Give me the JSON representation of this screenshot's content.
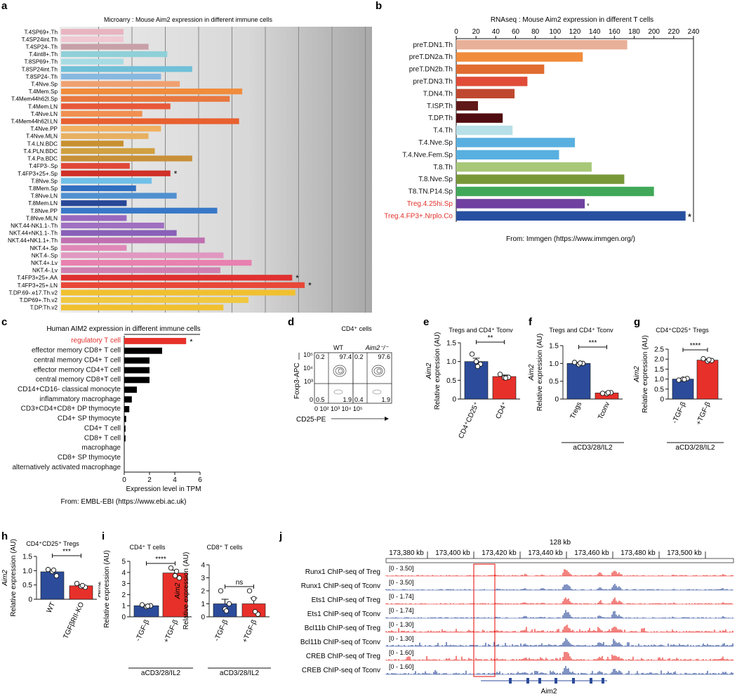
{
  "colors": {
    "red": "#e8302a",
    "blue": "#2c4b9a",
    "treg_red": "#e0302a",
    "grey_panel": "#d8d8d8"
  },
  "panels": {
    "a": {
      "letter": "a",
      "title": "Microarry : Mouse Aim2 expression in different immune cells"
    },
    "b": {
      "letter": "b",
      "title": "RNAseq : Mouse Aim2 expression in different T cells",
      "footer": "From: Immgen (https://www.immgen.org/)"
    },
    "c": {
      "letter": "c",
      "title": "Human AIM2 expression in different immune cells",
      "footer": "From: EMBL-EBI (https://www.ebi.ac.uk)"
    },
    "d": {
      "letter": "d",
      "title": "CD4⁺ cells",
      "wt": "WT",
      "ko": "Aim2⁻/⁻",
      "ylab": "Foxp3-APC",
      "xlab": "CD25-PE",
      "q_wt": [
        "0.2",
        "97.4",
        "0.5",
        "1.9"
      ],
      "q_ko": [
        "0.2",
        "97.6",
        "0.4",
        "1.9"
      ],
      "yticks": [
        "10⁵",
        "10⁴",
        "10³",
        "0"
      ],
      "xticks": "0 10² 10³ 10⁴ 10⁵"
    },
    "e": {
      "letter": "e",
      "title": "Tregs and CD4⁺ Tconv",
      "sig": "**"
    },
    "f": {
      "letter": "f",
      "title": "Tregs and CD4⁺ Tconv",
      "sig": "***",
      "cond": "aCD3/28/IL2"
    },
    "g": {
      "letter": "g",
      "title": "CD4⁺CD25⁺ Tregs",
      "sig": "****",
      "cond": "aCD3/28/IL2"
    },
    "h": {
      "letter": "h",
      "title": "CD4⁺CD25⁺ Tregs",
      "sig": "***"
    },
    "i": {
      "letter": "i",
      "title1": "CD4⁺ T cells",
      "title2": "CD8⁺ T cells",
      "sig1": "****",
      "sig2": "ns",
      "cond": "aCD3/28/IL2"
    },
    "j": {
      "letter": "j",
      "scale": "128 kb",
      "coords": [
        "173,380 kb",
        "173,400 kb",
        "173,420 kb",
        "173,440 kb",
        "173,460 kb",
        "173,480 kb",
        "173,500 kb"
      ],
      "gene": "Aim2",
      "tracks": [
        {
          "label": "Runx1 ChIP-seq of Treg",
          "range": "[0 - 3.50]",
          "cell": "treg"
        },
        {
          "label": "Runx1 ChIP-seq of Tconv",
          "range": "[0 - 3.50]",
          "cell": "tconv"
        },
        {
          "label": "Ets1 ChIP-seq of Treg",
          "range": "[0 - 1.74]",
          "cell": "treg"
        },
        {
          "label": "Ets1 ChIP-seq of Tconv",
          "range": "[0 - 1.74]",
          "cell": "tconv"
        },
        {
          "label": "Bcl11b ChIP-seq of Treg",
          "range": "[0 - 1.30]",
          "cell": "treg"
        },
        {
          "label": "Bcl11b ChIP-seq of Tconv",
          "range": "[0 - 1.30]",
          "cell": "tconv"
        },
        {
          "label": "CREB ChIP-seq of Treg",
          "range": "[0 - 1.60]",
          "cell": "treg"
        },
        {
          "label": "CREB ChIP-seq of Tconv",
          "range": "[0 - 1.60]",
          "cell": "tconv"
        }
      ]
    }
  },
  "chart_data": [
    {
      "id": "a",
      "type": "bar",
      "orientation": "horizontal",
      "title": "Microarry : Mouse Aim2 expression in different immune cells",
      "xlim": [
        0,
        100
      ],
      "categories": [
        "T.4SP69+.Th",
        "T.4SP24int.Th",
        "T.4SP24-.Th",
        "T.4int8+.Th",
        "T.8SP69+.Th",
        "T.8SP24int.Th",
        "T.8SP24-.Th",
        "T.4Nve.Sp",
        "T.4Mem.Sp",
        "T.4Mem44h62l.Sp",
        "T.4Mem.LN",
        "T.4Nve.LN",
        "T.4Mem44h62l.LN",
        "T.4Nve.PP",
        "T.4Nve.MLN",
        "T.4.LN.BDC",
        "T.4.PLN.BDC",
        "T.4.Pa.BDC",
        "T.4FP3-.Sp",
        "T.4FP3+25+.Sp",
        "T.8Nve.Sp",
        "T.8Mem.Sp",
        "T.8Nve.LN",
        "T.8Mem.LN",
        "T.8Nve.PP",
        "T.8Nve.MLN",
        "NKT.44-NK1.1-.Th",
        "NKT.44+NK1.1-.Th",
        "NKT.44+NK1.1+.Th",
        "NKT.4+.Sp",
        "NKT.4-.Sp",
        "NKT.4+.Lv",
        "NKT.4-.Lv",
        "T.4FP3+25+.AA",
        "T.4FP3+25+.LN",
        "T.DP.69-.e17.Th.v2",
        "T.DP69+.Th.v2",
        "T.DP.Th.v2"
      ],
      "values": [
        20,
        20,
        28,
        34,
        20,
        42,
        32,
        38,
        58,
        54,
        35,
        26,
        57,
        32,
        28,
        20,
        30,
        42,
        22,
        35,
        29,
        24,
        37,
        21,
        50,
        21,
        33,
        37,
        46,
        21,
        52,
        61,
        51,
        74,
        78,
        75,
        60,
        52
      ],
      "colors": [
        "#e8b4c0",
        "#f0c8d2",
        "#c8a0a8",
        "#8fd0d8",
        "#a8dce4",
        "#70c0d8",
        "#88b8e0",
        "#f0a070",
        "#f08c3c",
        "#e87840",
        "#e85838",
        "#f09050",
        "#e86030",
        "#f0b060",
        "#e8b060",
        "#c89030",
        "#d0a040",
        "#c89038",
        "#e04838",
        "#d03028",
        "#70c0e8",
        "#3070c0",
        "#5090d0",
        "#284898",
        "#3878c8",
        "#9868c0",
        "#a070c0",
        "#8860b8",
        "#c070b0",
        "#e088b8",
        "#e098c0",
        "#e880b0",
        "#d080b0",
        "#e03030",
        "#e84838",
        "#f0c030",
        "#f0c840",
        "#f0c030"
      ],
      "stars": [
        "T.4FP3+25+.Sp",
        "T.4FP3+25+.AA",
        "T.4FP3+25+.LN"
      ]
    },
    {
      "id": "b",
      "type": "bar",
      "orientation": "horizontal",
      "title": "RNAseq : Mouse Aim2 expression in different T cells",
      "xlim": [
        0,
        240
      ],
      "xticks": [
        0,
        20,
        40,
        60,
        80,
        100,
        120,
        140,
        160,
        180,
        200,
        220,
        240
      ],
      "categories": [
        "preT.DN1.Th",
        "preT.DN2a.Th",
        "preT.DN2b.Th",
        "preT.DN3.Th",
        "T.DN4.Th",
        "T.ISP.Th",
        "T.DP.Th",
        "T.4.Th",
        "T.4.Nve.Sp",
        "T.4.Nve.Fem.Sp",
        "T.8.Th",
        "T.8.Nve.Sp",
        "T8.TN.P14.Sp",
        "Treg.4.25hi.Sp",
        "Treg.4.FP3+.Nrplo.Co"
      ],
      "values": [
        173,
        128,
        89,
        72,
        59,
        22,
        47,
        57,
        120,
        104,
        137,
        170,
        200,
        130,
        232
      ],
      "colors": [
        "#e8b098",
        "#f08c3c",
        "#e06c30",
        "#e04c38",
        "#c04830",
        "#601818",
        "#500c10",
        "#b8e0e8",
        "#58b0e0",
        "#58b0e0",
        "#a8c878",
        "#789838",
        "#40a858",
        "#7040a0",
        "#2850a0"
      ],
      "highlighted": [
        "Treg.4.25hi.Sp",
        "Treg.4.FP3+.Nrplo.Co"
      ],
      "stars": [
        "Treg.4.25hi.Sp",
        "Treg.4.FP3+.Nrplo.Co"
      ]
    },
    {
      "id": "c",
      "type": "bar",
      "orientation": "horizontal",
      "title": "Human AIM2 expression in different immune cells",
      "xlabel": "Expression level in TPM",
      "xlim": [
        0,
        6
      ],
      "xticks": [
        0,
        2,
        4,
        6
      ],
      "categories": [
        "regulatory T cell",
        "effector memory CD8+ T cell",
        "central memory CD4+ T cell",
        "effector memory CD4+T cell",
        "central memory CD8+T cell",
        "CD14+CD16- classical monocyte",
        "inflammatory macrophage",
        "CD3+CD4+CD8+ DP thymocyte",
        "CD4+ SP thymocyte",
        "CD4+ T cell",
        "CD8+ T cell",
        "macrophage",
        "CD8+ SP thymocyte",
        "alternatively activated macrophage"
      ],
      "values": [
        4.9,
        3.0,
        2.0,
        2.0,
        2.0,
        1.0,
        0.6,
        0.4,
        0.15,
        0.1,
        0.1,
        0,
        0,
        0
      ],
      "highlighted": [
        "regulatory T cell"
      ],
      "stars": [
        "regulatory T cell"
      ]
    },
    {
      "id": "e",
      "type": "bar",
      "title": "Tregs and CD4⁺ Tconv",
      "ylabel": "Relative expression (AU)",
      "ylabel_gene": "Aim2",
      "ylim": [
        0,
        1.5
      ],
      "yticks": [
        0,
        0.5,
        1.0,
        1.5
      ],
      "categories": [
        "CD4⁺CD25⁺",
        "CD4⁺"
      ],
      "values": [
        1.0,
        0.6
      ],
      "errors": [
        0.09,
        0.04
      ],
      "points": [
        [
          1.2,
          1.0,
          0.93,
          0.87
        ],
        [
          0.66,
          0.57,
          0.58,
          0.56
        ]
      ],
      "significance": "**"
    },
    {
      "id": "f",
      "type": "bar",
      "title": "Tregs and CD4⁺ Tconv",
      "ylabel": "Relative expression (AU)",
      "ylabel_gene": "Aim2",
      "ylim": [
        0,
        1.5
      ],
      "yticks": [
        0,
        0.5,
        1.0,
        1.5
      ],
      "categories": [
        "Tregs",
        "Tconv"
      ],
      "values": [
        1.0,
        0.17
      ],
      "errors": [
        0.03,
        0.02
      ],
      "points": [
        [
          1.03,
          0.97,
          1.0,
          1.01
        ],
        [
          0.16,
          0.15,
          0.18,
          0.18
        ]
      ],
      "significance": "***",
      "condition": "aCD3/28/IL2"
    },
    {
      "id": "g",
      "type": "bar",
      "title": "CD4⁺CD25⁺ Tregs",
      "ylabel": "Relative expression (AU)",
      "ylabel_gene": "Aim2",
      "ylim": [
        0,
        2.5
      ],
      "yticks": [
        0,
        0.5,
        1.0,
        1.5,
        2.0,
        2.5
      ],
      "categories": [
        "-TGF-β",
        "+TGF-β"
      ],
      "values": [
        1.0,
        1.95
      ],
      "errors": [
        0.04,
        0.06
      ],
      "points": [
        [
          0.95,
          1.0,
          1.03,
          0.98
        ],
        [
          2.02,
          1.9,
          1.93,
          1.97
        ]
      ],
      "significance": "****",
      "condition": "aCD3/28/IL2"
    },
    {
      "id": "h",
      "type": "bar",
      "title": "CD4⁺CD25⁺ Tregs",
      "ylabel": "Relative expression (AU)",
      "ylabel_gene": "Aim2",
      "ylim": [
        0,
        1.5
      ],
      "yticks": [
        0,
        0.5,
        1.0,
        1.5
      ],
      "categories": [
        "WT",
        "TGFβRII-KO"
      ],
      "values": [
        0.96,
        0.47
      ],
      "errors": [
        0.06,
        0.04
      ],
      "points": [
        [
          1.04,
          0.97,
          0.82,
          1.02
        ],
        [
          0.55,
          0.45,
          0.42,
          0.48
        ]
      ],
      "significance": "***"
    },
    {
      "id": "i1",
      "type": "bar",
      "title": "CD4⁺ T cells",
      "ylabel": "Relative expression (AU)",
      "ylabel_gene": "Aim2",
      "ylim": [
        0,
        5
      ],
      "yticks": [
        0,
        1,
        2,
        3,
        4,
        5
      ],
      "categories": [
        "-TGF-β",
        "+TGF-β"
      ],
      "values": [
        1.0,
        3.95
      ],
      "errors": [
        0.06,
        0.25
      ],
      "points": [
        [
          1.08,
          0.9,
          1.0,
          0.96
        ],
        [
          4.4,
          3.7,
          3.5,
          4.1
        ]
      ],
      "significance": "****",
      "condition": "aCD3/28/IL2"
    },
    {
      "id": "i2",
      "type": "bar",
      "title": "CD8⁺ T cells",
      "ylabel": "Relative expression (AU)",
      "ylabel_gene": "Aim2",
      "ylim": [
        0,
        4
      ],
      "yticks": [
        0,
        1,
        2,
        3,
        4
      ],
      "categories": [
        "-TGF-β",
        "+TGF-β"
      ],
      "values": [
        1.0,
        1.0
      ],
      "errors": [
        0.35,
        0.45
      ],
      "points": [
        [
          2.0,
          0.6,
          1.0,
          0.45
        ],
        [
          2.0,
          1.4,
          0.2,
          0.4
        ]
      ],
      "significance": "ns",
      "condition": "aCD3/28/IL2"
    }
  ]
}
